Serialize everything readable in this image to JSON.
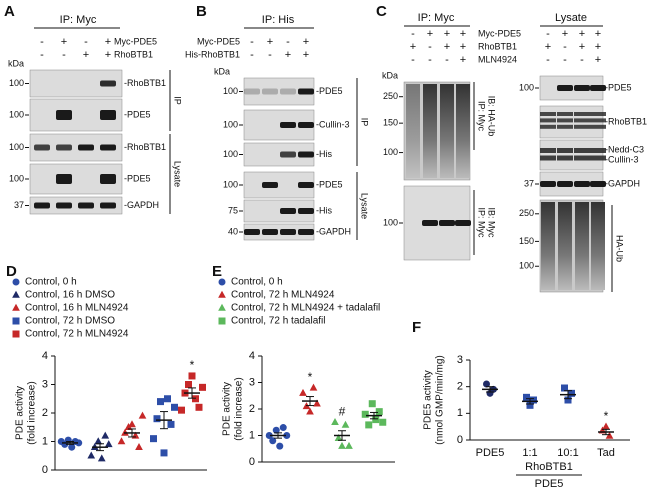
{
  "panel_a": {
    "letter": "A",
    "header": "IP: Myc",
    "sign_rows": [
      {
        "label": "Myc-PDE5",
        "signs": [
          "-",
          "+",
          "-",
          "+"
        ]
      },
      {
        "label": "RhoBTB1",
        "signs": [
          "-",
          "-",
          "+",
          "+"
        ]
      }
    ],
    "kda": "kDa",
    "blots": [
      {
        "markers": [
          "100"
        ],
        "labels": [
          "-RhoBTB1"
        ]
      },
      {
        "markers": [
          "100"
        ],
        "labels": [
          "-PDE5"
        ]
      },
      {
        "markers": [
          "100"
        ],
        "labels": [
          "-RhoBTB1"
        ]
      },
      {
        "markers": [
          "100"
        ],
        "labels": [
          "-PDE5"
        ]
      },
      {
        "markers": [
          "37"
        ],
        "labels": [
          "-GAPDH"
        ]
      }
    ],
    "brackets": [
      [
        "IP"
      ],
      [
        "Lysate"
      ]
    ]
  },
  "panel_b": {
    "letter": "B",
    "header": "IP: His",
    "sign_rows": [
      {
        "label": "Myc-PDE5",
        "signs": [
          "-",
          "+",
          "-",
          "+"
        ]
      },
      {
        "label": "His-RhoBTB1",
        "signs": [
          "-",
          "-",
          "+",
          "+"
        ]
      }
    ],
    "kda": "kDa",
    "blots": [
      {
        "markers": [
          "100"
        ],
        "labels": [
          "-PDE5"
        ]
      },
      {
        "markers": [
          "100"
        ],
        "labels": [
          "-Cullin-3"
        ]
      },
      {
        "markers": [
          "100"
        ],
        "labels": [
          "-His"
        ]
      },
      {
        "markers": [
          "100"
        ],
        "labels": [
          "-PDE5"
        ]
      },
      {
        "markers": [
          "75"
        ],
        "labels": [
          "-His"
        ]
      },
      {
        "markers": [
          "40"
        ],
        "labels": [
          "-GAPDH"
        ]
      }
    ],
    "brackets": [
      [
        "IP"
      ],
      [
        "Lysate"
      ]
    ]
  },
  "panel_c_ip": {
    "letter": "C",
    "header": "IP: Myc",
    "sign_rows": [
      {
        "label": "Myc-PDE5",
        "signs": [
          "-",
          "+",
          "+",
          "+"
        ]
      },
      {
        "label": "RhoBTB1",
        "signs": [
          "+",
          "-",
          "+",
          "+"
        ]
      },
      {
        "label": "MLN4924",
        "signs": [
          "-",
          "-",
          "-",
          "+"
        ]
      }
    ],
    "kda": "kDa",
    "blots": [
      {
        "markers": [
          "250",
          "150",
          "100"
        ],
        "labels": []
      },
      {
        "markers": [
          "100"
        ],
        "labels": []
      }
    ],
    "brackets": [
      [
        "IP: Myc",
        "IB: HA-Ub"
      ],
      [
        "IP: Myc",
        "IB: Myc"
      ]
    ]
  },
  "panel_c_lysate": {
    "header": "Lysate",
    "sign_rows": [
      {
        "signs": [
          "-",
          "+",
          "+",
          "+"
        ]
      },
      {
        "signs": [
          "+",
          "-",
          "+",
          "+"
        ]
      },
      {
        "signs": [
          "-",
          "-",
          "-",
          "+"
        ]
      }
    ],
    "blots": [
      {
        "markers": [
          "100"
        ],
        "labels": [
          "-PDE5"
        ]
      },
      {
        "markers": [],
        "labels": [
          "-RhoBTB1"
        ]
      },
      {
        "markers": [],
        "labels": [
          "-Nedd-C3",
          "-Cullin-3"
        ]
      },
      {
        "markers": [
          "37"
        ],
        "labels": [
          "-GAPDH"
        ]
      },
      {
        "markers": [
          "250",
          "150",
          "100"
        ],
        "labels": []
      }
    ],
    "brackets": [
      [
        "HA-Ub"
      ]
    ]
  },
  "chart_data": [
    {
      "type": "strip",
      "letter": "D",
      "ylabel": [
        "PDE activity",
        "(fold increase)"
      ],
      "ylim": [
        0,
        4
      ],
      "yticks": [
        0,
        1,
        2,
        3,
        4
      ],
      "series": [
        {
          "name": "Control, 0 h",
          "color": "#2d4ea8",
          "marker": "circle",
          "values": [
            1.0,
            0.9,
            1.05,
            0.8,
            1.0,
            0.95
          ],
          "mean": 0.95,
          "sem": 0.05
        },
        {
          "name": "Control, 16 h DMSO",
          "color": "#1f2a66",
          "marker": "triangle",
          "values": [
            0.5,
            0.8,
            1.0,
            0.4,
            1.2,
            0.9
          ],
          "mean": 0.8,
          "sem": 0.12
        },
        {
          "name": "Control, 16 h MLN4924",
          "color": "#c62828",
          "marker": "triangle",
          "values": [
            1.0,
            1.3,
            1.5,
            1.6,
            1.2,
            0.8,
            1.9
          ],
          "mean": 1.3,
          "sem": 0.14
        },
        {
          "name": "Control, 72 h DMSO",
          "color": "#2d4ea8",
          "marker": "square",
          "values": [
            1.1,
            1.8,
            2.4,
            0.6,
            2.5,
            1.6,
            2.2
          ],
          "mean": 1.75,
          "sem": 0.3
        },
        {
          "name": "Control, 72 h MLN4924",
          "color": "#c62828",
          "marker": "square",
          "values": [
            2.1,
            2.7,
            3.0,
            3.3,
            2.5,
            2.2,
            2.9
          ],
          "mean": 2.7,
          "sem": 0.18,
          "annotation": "*"
        }
      ]
    },
    {
      "type": "strip",
      "letter": "E",
      "ylabel": [
        "PDE activity",
        "(fold increase)"
      ],
      "ylim": [
        0,
        4
      ],
      "yticks": [
        0,
        1,
        2,
        3,
        4
      ],
      "series": [
        {
          "name": "Control, 0 h",
          "color": "#2d4ea8",
          "marker": "circle",
          "values": [
            1.0,
            0.8,
            1.2,
            0.6,
            1.3,
            1.0
          ],
          "mean": 1.0,
          "sem": 0.1
        },
        {
          "name": "Control, 72 h MLN4924",
          "color": "#c62828",
          "marker": "triangle",
          "values": [
            2.6,
            2.1,
            1.9,
            2.8,
            2.2
          ],
          "mean": 2.3,
          "sem": 0.17,
          "annotation": "*"
        },
        {
          "name": "Control, 72 h MLN4924 + tadalafil",
          "color": "#5cb85c",
          "marker": "triangle",
          "values": [
            1.5,
            0.9,
            0.6,
            1.4,
            0.6
          ],
          "mean": 1.0,
          "sem": 0.18,
          "annotation": "#"
        },
        {
          "name": "Control, 72 h tadalafil",
          "color": "#5cb85c",
          "marker": "square",
          "values": [
            1.8,
            1.4,
            2.2,
            1.6,
            1.9,
            1.5
          ],
          "mean": 1.75,
          "sem": 0.12
        }
      ]
    },
    {
      "type": "strip",
      "letter": "F",
      "ylabel": [
        "PDE5 activity",
        "(nmol GMP/min/mg)"
      ],
      "ylim": [
        0,
        3
      ],
      "yticks": [
        0,
        1,
        2,
        3
      ],
      "categories": [
        "PDE5",
        "1:1",
        "10:1",
        "Tad"
      ],
      "group_label": [
        "RhoBTB1",
        "PDE5"
      ],
      "series": [
        {
          "color": "#1f2a66",
          "marker": "circle",
          "values": [
            2.1,
            1.75,
            1.9
          ],
          "mean": 1.9,
          "sem": 0.1
        },
        {
          "color": "#2d4ea8",
          "marker": "square",
          "values": [
            1.6,
            1.3,
            1.5
          ],
          "mean": 1.45,
          "sem": 0.1
        },
        {
          "color": "#2d4ea8",
          "marker": "square",
          "values": [
            1.95,
            1.5,
            1.75
          ],
          "mean": 1.7,
          "sem": 0.15
        },
        {
          "color": "#c62828",
          "marker": "triangle",
          "values": [
            0.35,
            0.5,
            0.15
          ],
          "mean": 0.3,
          "sem": 0.1,
          "annotation": "*"
        }
      ]
    }
  ]
}
